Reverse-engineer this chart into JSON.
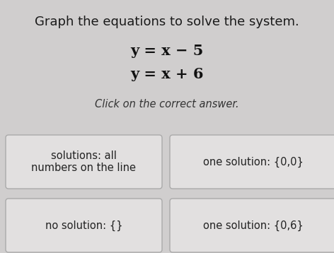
{
  "title": "Graph the equations to solve the system.",
  "eq1": "y = x − 5",
  "eq2": "y = x + 6",
  "subtitle": "Click on the correct answer.",
  "btn_top_left": "solutions: all\nnumbers on the line",
  "btn_top_right": "one solution: {0,0}",
  "btn_bot_left": "no solution: {}",
  "btn_bot_right": "one solution: {0,6}",
  "bg_color": "#d0cece",
  "btn_bg_color": "#e2e0e0",
  "btn_border_color": "#aaaaaa",
  "title_color": "#1a1a1a",
  "eq_color": "#111111",
  "subtitle_color": "#333333",
  "btn_text_color": "#222222",
  "title_fontsize": 13,
  "eq_fontsize": 15,
  "subtitle_fontsize": 10.5,
  "btn_fontsize": 10.5
}
